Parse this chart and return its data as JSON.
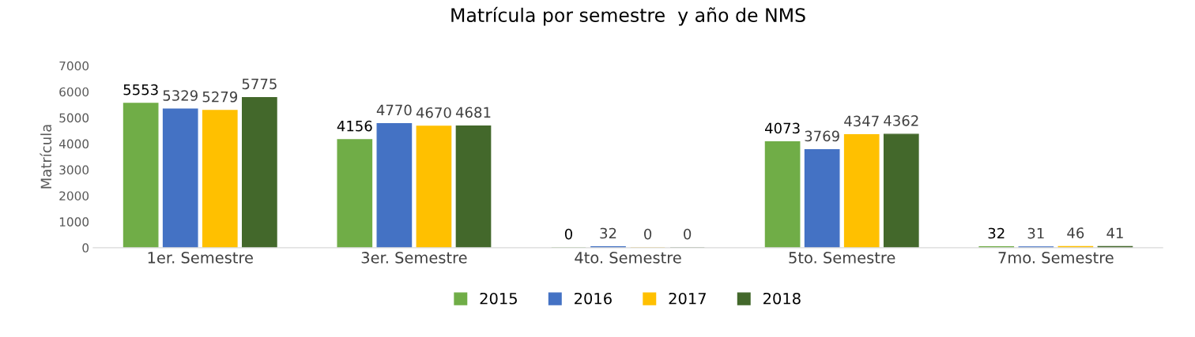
{
  "chart_data": {
    "type": "bar",
    "title": "Matrícula por semestre  y año de NMS",
    "ylabel": "Matrícula",
    "categories": [
      "1er. Semestre",
      "3er. Semestre",
      "4to. Semestre",
      "5to. Semestre",
      "7mo. Semestre"
    ],
    "series": [
      {
        "name": "2015",
        "color": "#70ad47",
        "values": [
          5553,
          4156,
          0,
          4073,
          32
        ]
      },
      {
        "name": "2016",
        "color": "#4472c4",
        "values": [
          5329,
          4770,
          32,
          3769,
          31
        ]
      },
      {
        "name": "2017",
        "color": "#ffc000",
        "values": [
          5279,
          4670,
          0,
          4347,
          46
        ]
      },
      {
        "name": "2018",
        "color": "#43682b",
        "values": [
          5775,
          4681,
          0,
          4362,
          41
        ]
      }
    ],
    "ylim": [
      0,
      7000
    ],
    "yticks": [
      0,
      1000,
      2000,
      3000,
      4000,
      5000,
      6000,
      7000
    ],
    "data_labels": true,
    "grid": false,
    "legend": "bottom"
  }
}
